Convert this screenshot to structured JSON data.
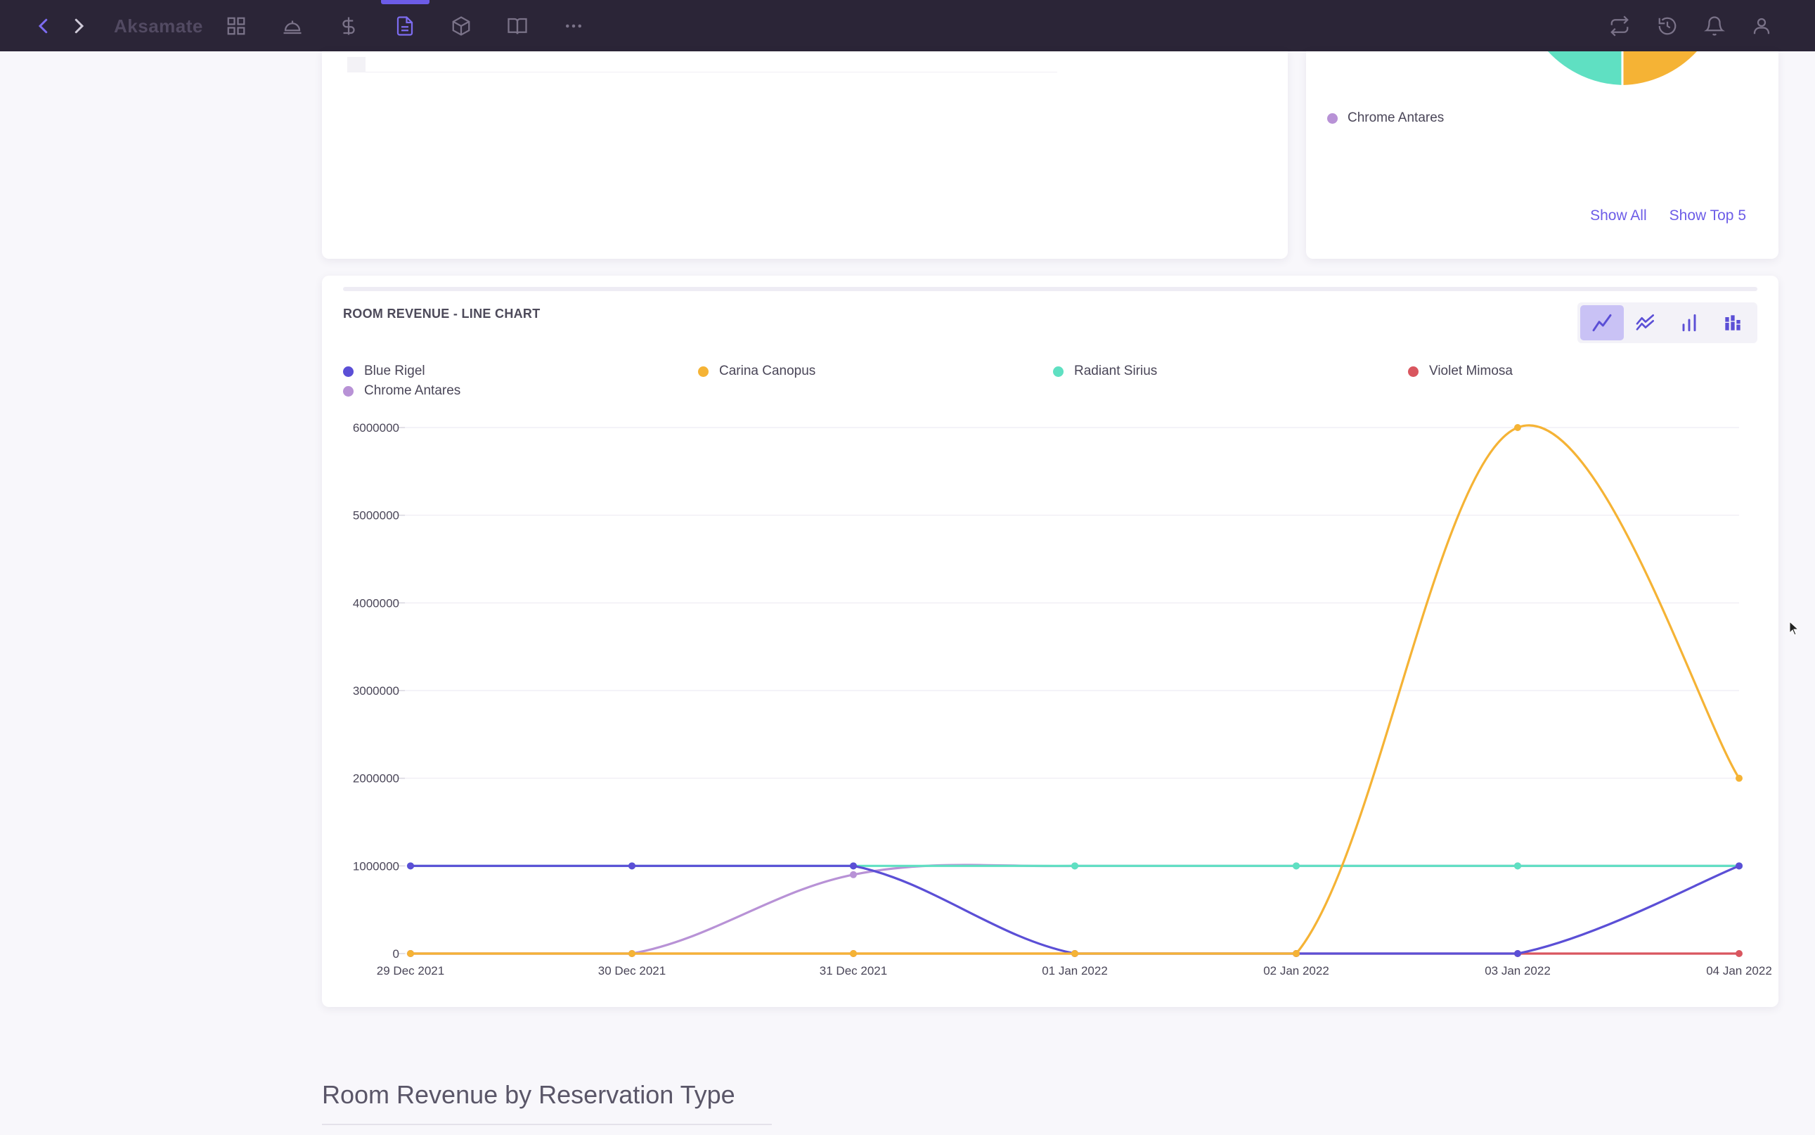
{
  "topbar": {
    "brand": "Aksamate",
    "icons": [
      "back-arrow-icon",
      "forward-arrow-icon",
      "grid-icon",
      "service-bell-icon",
      "dollar-icon",
      "document-icon",
      "cube-icon",
      "book-icon",
      "more-icon",
      "sync-icon",
      "history-icon",
      "bell-icon",
      "user-icon"
    ],
    "active_icon": "document-icon"
  },
  "pie_card": {
    "legend_item": "Chrome Antares",
    "show_all": "Show All",
    "show_top5": "Show Top 5"
  },
  "chart_card": {
    "title": "ROOM REVENUE - LINE CHART",
    "chart_types": [
      "line-chart-icon",
      "area-chart-icon",
      "bar-chart-icon",
      "stacked-bar-icon"
    ]
  },
  "section": {
    "heading": "Room Revenue by Reservation Type"
  },
  "colors": {
    "accent": "#6c5ce7",
    "blue_rigel": "#5b4fd6",
    "carina_canopus": "#f5b335",
    "radiant_sirius": "#5fe0c2",
    "violet_mimosa": "#d9565f",
    "chrome_antares": "#b892d6"
  },
  "chart_data": {
    "type": "line",
    "title": "ROOM REVENUE - LINE CHART",
    "x": [
      "29 Dec 2021",
      "30 Dec 2021",
      "31 Dec 2021",
      "01 Jan 2022",
      "02 Jan 2022",
      "03 Jan 2022",
      "04 Jan 2022"
    ],
    "yticks": [
      0,
      1000000,
      2000000,
      3000000,
      4000000,
      5000000,
      6000000
    ],
    "ylim": [
      0,
      6000000
    ],
    "legend_position": "top",
    "grid": true,
    "series": [
      {
        "name": "Blue Rigel",
        "color": "#5b4fd6",
        "values": [
          1000000,
          1000000,
          1000000,
          0,
          0,
          0,
          1000000
        ]
      },
      {
        "name": "Carina Canopus",
        "color": "#f5b335",
        "values": [
          0,
          0,
          0,
          0,
          0,
          6000000,
          2000000
        ]
      },
      {
        "name": "Radiant Sirius",
        "color": "#5fe0c2",
        "values": [
          1000000,
          1000000,
          1000000,
          1000000,
          1000000,
          1000000,
          1000000
        ]
      },
      {
        "name": "Violet Mimosa",
        "color": "#d9565f",
        "values": [
          0,
          0,
          0,
          0,
          0,
          0,
          0
        ]
      },
      {
        "name": "Chrome Antares",
        "color": "#b892d6",
        "values": [
          0,
          0,
          900000,
          1000000,
          1000000,
          1000000,
          1000000
        ]
      }
    ]
  }
}
